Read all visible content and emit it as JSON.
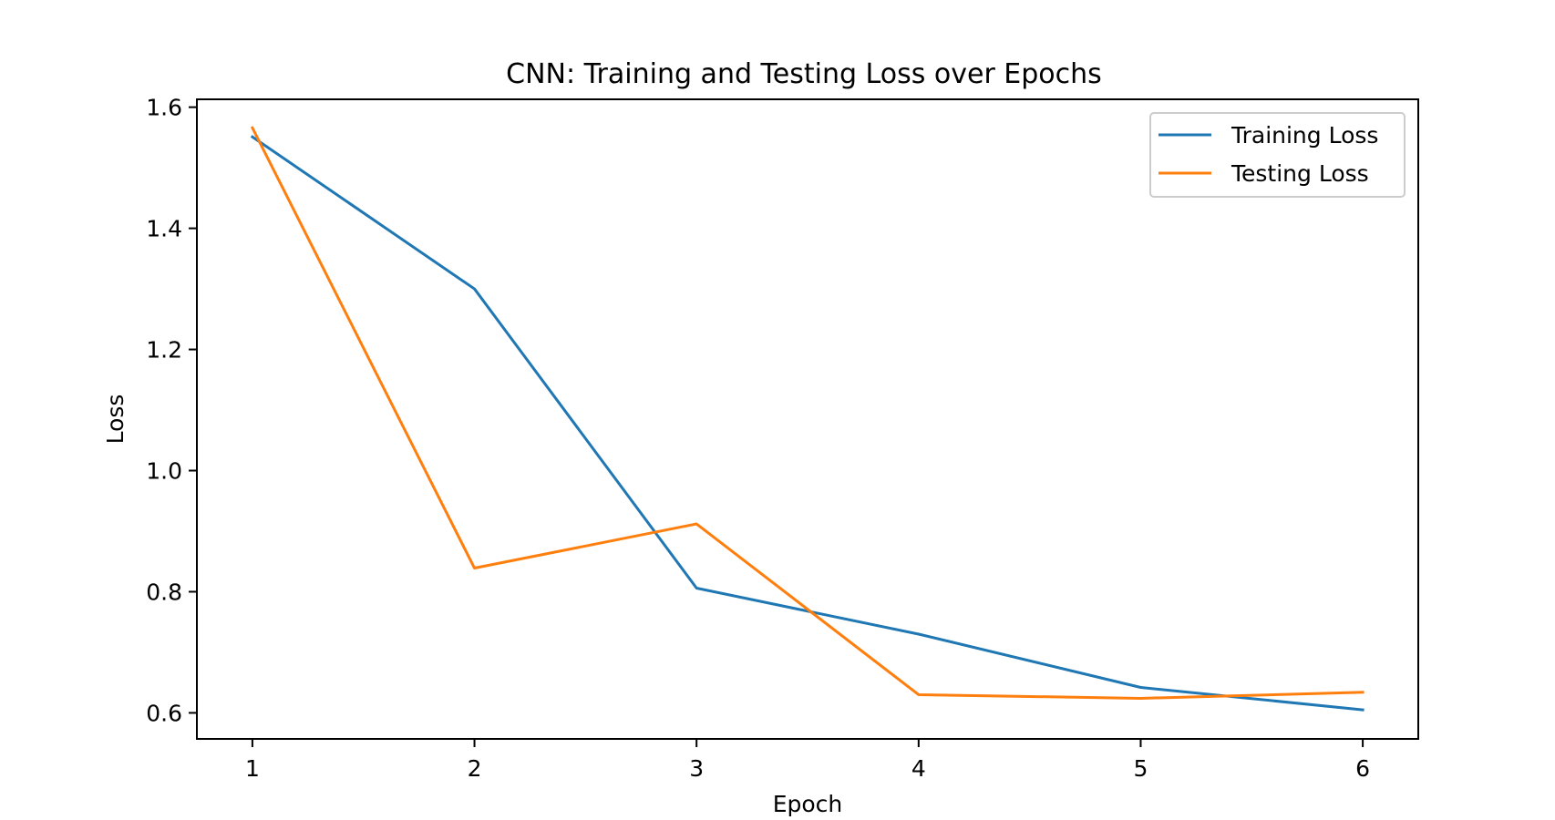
{
  "chart_data": {
    "type": "line",
    "title": "CNN: Training and Testing Loss over Epochs",
    "xlabel": "Epoch",
    "ylabel": "Loss",
    "x": [
      1,
      2,
      3,
      4,
      5,
      6
    ],
    "xlim": [
      0.75,
      6.25
    ],
    "ylim": [
      0.557,
      1.613
    ],
    "xticks": [
      1,
      2,
      3,
      4,
      5,
      6
    ],
    "yticks": [
      0.6,
      0.8,
      1.0,
      1.2,
      1.4,
      1.6
    ],
    "ytick_labels": [
      "0.6",
      "0.8",
      "1.0",
      "1.2",
      "1.4",
      "1.6"
    ],
    "grid": false,
    "legend_position": "top-right",
    "series": [
      {
        "name": "Training Loss",
        "color": "#1f77b4",
        "values": [
          1.551,
          1.3,
          0.806,
          0.73,
          0.642,
          0.605
        ]
      },
      {
        "name": "Testing Loss",
        "color": "#ff7f0e",
        "values": [
          1.566,
          0.839,
          0.912,
          0.63,
          0.624,
          0.634
        ]
      }
    ]
  }
}
